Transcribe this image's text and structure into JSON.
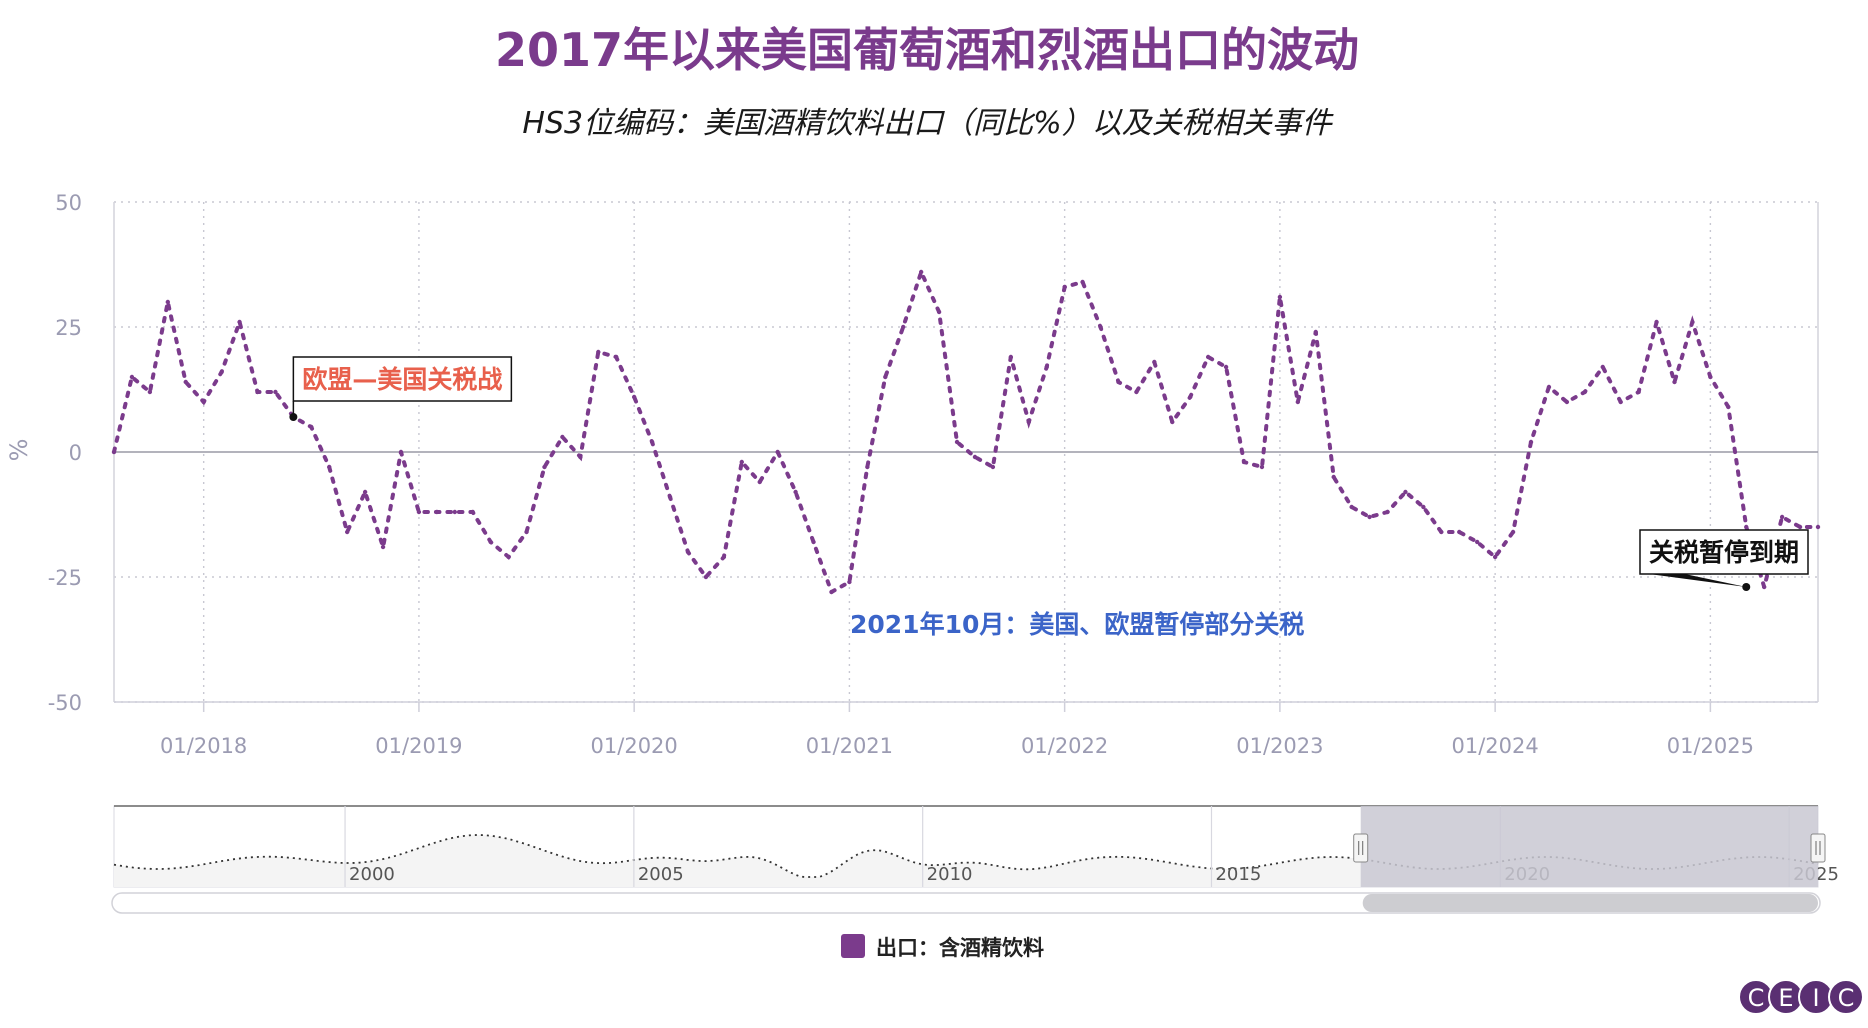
{
  "colors": {
    "series": "#7b3b8c",
    "title": "#7a3b8c",
    "annotation_red": "#e8604c",
    "annotation_blue": "#3b64c8",
    "grid": "#c8c8d2",
    "axis_text": "#9b9bb2",
    "zero_line": "#9a9aa6",
    "nav_mask": "#c9c8d2",
    "logo": "#5a2f72"
  },
  "chart_data": {
    "type": "line",
    "title": "2017年以来美国葡萄酒和烈酒出口的波动",
    "subtitle": "HS3位编码：美国酒精饮料出口（同比%）以及关税相关事件",
    "ylabel": "%",
    "ylim": [
      -50,
      50
    ],
    "yticks": [
      50,
      25,
      0,
      -25,
      -50
    ],
    "xlim": [
      "2017-08",
      "2025-07"
    ],
    "xticks": [
      "01/2018",
      "01/2019",
      "01/2020",
      "01/2021",
      "01/2022",
      "01/2023",
      "01/2024",
      "01/2025"
    ],
    "grid": true,
    "line_style": "dotted",
    "legend_position": "bottom-center",
    "series": [
      {
        "name": "出口：含酒精饮料",
        "x": [
          "2017-08",
          "2017-09",
          "2017-10",
          "2017-11",
          "2017-12",
          "2018-01",
          "2018-02",
          "2018-03",
          "2018-04",
          "2018-05",
          "2018-06",
          "2018-07",
          "2018-08",
          "2018-09",
          "2018-10",
          "2018-11",
          "2018-12",
          "2019-01",
          "2019-02",
          "2019-03",
          "2019-04",
          "2019-05",
          "2019-06",
          "2019-07",
          "2019-08",
          "2019-09",
          "2019-10",
          "2019-11",
          "2019-12",
          "2020-01",
          "2020-02",
          "2020-03",
          "2020-04",
          "2020-05",
          "2020-06",
          "2020-07",
          "2020-08",
          "2020-09",
          "2020-10",
          "2020-11",
          "2020-12",
          "2021-01",
          "2021-02",
          "2021-03",
          "2021-04",
          "2021-05",
          "2021-06",
          "2021-07",
          "2021-08",
          "2021-09",
          "2021-10",
          "2021-11",
          "2021-12",
          "2022-01",
          "2022-02",
          "2022-03",
          "2022-04",
          "2022-05",
          "2022-06",
          "2022-07",
          "2022-08",
          "2022-09",
          "2022-10",
          "2022-11",
          "2022-12",
          "2023-01",
          "2023-02",
          "2023-03",
          "2023-04",
          "2023-05",
          "2023-06",
          "2023-07",
          "2023-08",
          "2023-09",
          "2023-10",
          "2023-11",
          "2023-12",
          "2024-01",
          "2024-02",
          "2024-03",
          "2024-04",
          "2024-05",
          "2024-06",
          "2024-07",
          "2024-08",
          "2024-09",
          "2024-10",
          "2024-11",
          "2024-12",
          "2025-01",
          "2025-02",
          "2025-03",
          "2025-04",
          "2025-05",
          "2025-06",
          "2025-07"
        ],
        "values": [
          0,
          15,
          12,
          30,
          14,
          10,
          16,
          26,
          12,
          12,
          7,
          5,
          -3,
          -16,
          -8,
          -19,
          0,
          -12,
          -12,
          -12,
          -12,
          -18,
          -21,
          -16,
          -3,
          3,
          -1,
          20,
          19,
          11,
          2,
          -9,
          -20,
          -25,
          -21,
          -2,
          -6,
          0,
          -8,
          -18,
          -28,
          -26,
          -3,
          15,
          25,
          36,
          28,
          2,
          -1,
          -3,
          19,
          6,
          17,
          33,
          34,
          25,
          14,
          12,
          18,
          6,
          11,
          19,
          17,
          -2,
          -3,
          31,
          10,
          24,
          -5,
          -11,
          -13,
          -12,
          -8,
          -11,
          -16,
          -16,
          -18,
          -21,
          -16,
          2,
          13,
          10,
          12,
          17,
          10,
          12,
          26,
          14,
          26,
          15,
          9,
          -15,
          -27,
          -13,
          -15,
          -15
        ]
      }
    ],
    "annotations": [
      {
        "text": "欧盟—美国关税战",
        "x": "2018-06",
        "y": 7,
        "color": "red",
        "boxed": true
      },
      {
        "text": "2021年10月：美国、欧盟暂停部分关税",
        "x": "2021-10",
        "y": -35,
        "color": "blue",
        "boxed": false
      },
      {
        "text": "关税暂停到期",
        "x": "2025-03",
        "y": -27,
        "color": "black",
        "boxed": true
      }
    ],
    "navigator": {
      "labels": [
        "2000",
        "2005",
        "2010",
        "2015",
        "2020",
        "2025"
      ],
      "start_year": 1996,
      "end_year": 2025.5,
      "window": [
        "2017-08",
        "2025-07"
      ]
    }
  },
  "legend": {
    "label": "出口：含酒精饮料"
  },
  "logo": {
    "letters": [
      "C",
      "E",
      "I",
      "C"
    ]
  }
}
